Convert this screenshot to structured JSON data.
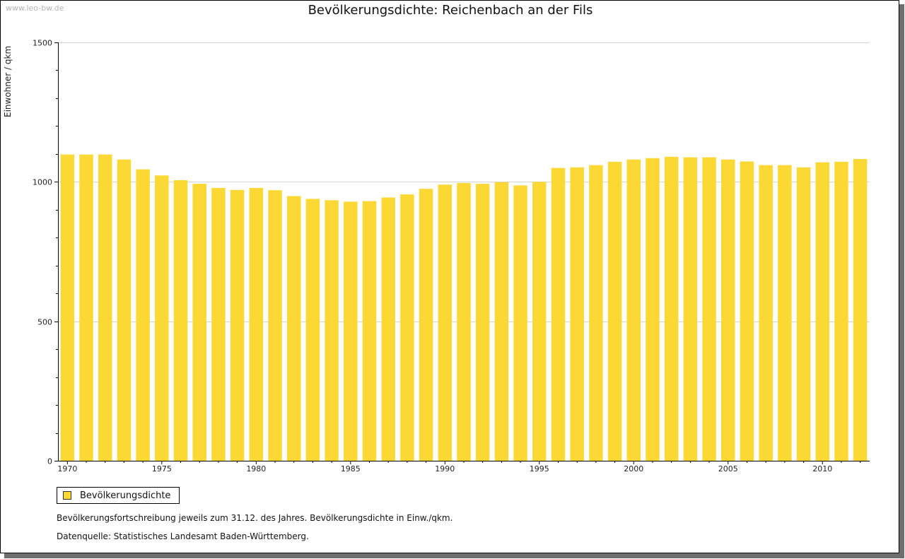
{
  "watermark": "www.leo-bw.de",
  "chart_data": {
    "type": "bar",
    "title": "Bevölkerungsdichte: Reichenbach an der Fils",
    "xlabel": "",
    "ylabel": "Einwohner / qkm",
    "ylim": [
      0,
      1500
    ],
    "yticks": [
      "0",
      "500",
      "1000",
      "1500"
    ],
    "xtick_labels": [
      "1970",
      "1975",
      "1980",
      "1985",
      "1990",
      "1995",
      "2000",
      "2005",
      "2010"
    ],
    "grid": true,
    "bar_color": "#fcd834",
    "categories": [
      "1970",
      "1971",
      "1972",
      "1973",
      "1974",
      "1975",
      "1976",
      "1977",
      "1978",
      "1979",
      "1980",
      "1981",
      "1982",
      "1983",
      "1984",
      "1985",
      "1986",
      "1987",
      "1988",
      "1989",
      "1990",
      "1991",
      "1992",
      "1993",
      "1994",
      "1995",
      "1996",
      "1997",
      "1998",
      "1999",
      "2000",
      "2001",
      "2002",
      "2003",
      "2004",
      "2005",
      "2006",
      "2007",
      "2008",
      "2009",
      "2010",
      "2011",
      "2012"
    ],
    "series": [
      {
        "name": "Bevölkerungsdichte",
        "values": [
          1098,
          1098,
          1098,
          1080,
          1045,
          1023,
          1006,
          993,
          978,
          971,
          978,
          970,
          949,
          939,
          934,
          929,
          931,
          944,
          955,
          975,
          990,
          996,
          993,
          999,
          987,
          1000,
          1050,
          1052,
          1060,
          1072,
          1080,
          1085,
          1090,
          1088,
          1088,
          1080,
          1073,
          1060,
          1060,
          1052,
          1070,
          1072,
          1082
        ]
      }
    ],
    "legend_position": "bottom-left"
  },
  "legend": {
    "label": "Bevölkerungsdichte"
  },
  "notes": {
    "line1": "Bevölkerungsfortschreibung jeweils zum 31.12. des Jahres. Bevölkerungsdichte in Einw./qkm.",
    "line2": "Datenquelle: Statistisches Landesamt Baden-Württemberg."
  }
}
